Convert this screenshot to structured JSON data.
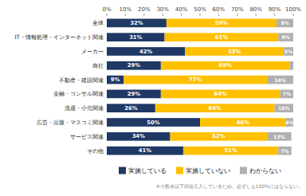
{
  "chart_data": {
    "type": "bar",
    "orientation": "horizontal",
    "stacked": true,
    "categories": [
      "全体",
      "IT・情報処理・インターネット関連",
      "メーカー",
      "商社",
      "不動産・建設関連",
      "金融・コンサル関連",
      "流通・小売関連",
      "広告・出版・マスコミ関連",
      "サービス関連",
      "その他"
    ],
    "series": [
      {
        "name": "実施している",
        "color": "#1f3864",
        "values": [
          32,
          31,
          42,
          29,
          9,
          29,
          26,
          50,
          34,
          41
        ],
        "value_labels": [
          "32%",
          "31%",
          "42%",
          "29%",
          "9%",
          "29%",
          "26%",
          "50%",
          "34%",
          "41%"
        ]
      },
      {
        "name": "実施していない",
        "color": "#ffc000",
        "values": [
          59,
          61,
          53,
          69,
          77,
          64,
          64,
          46,
          52,
          51
        ],
        "value_labels": [
          "59%",
          "61%",
          "53%",
          "69%",
          "77%",
          "64%",
          "64%",
          "46%",
          "52%",
          "51%"
        ]
      },
      {
        "name": "わからない",
        "color": "#b0b0b0",
        "values": [
          9,
          8,
          5,
          2,
          14,
          7,
          10,
          4,
          13,
          7
        ],
        "value_labels": [
          "9%",
          "8%",
          "5%",
          null,
          "14%",
          "7%",
          "10%",
          "4%",
          "13%",
          "7%"
        ]
      }
    ],
    "xlim": [
      0,
      100
    ],
    "xticks": [
      {
        "value": 0,
        "label": "0%"
      },
      {
        "value": 10,
        "label": "10%"
      },
      {
        "value": 20,
        "label": "20%"
      },
      {
        "value": 30,
        "label": "30%"
      },
      {
        "value": 40,
        "label": "40%"
      },
      {
        "value": 50,
        "label": "50%"
      },
      {
        "value": 60,
        "label": "60%"
      },
      {
        "value": 70,
        "label": "70%"
      },
      {
        "value": 80,
        "label": "80%"
      },
      {
        "value": 90,
        "label": "90%"
      },
      {
        "value": 100,
        "label": "100%"
      }
    ],
    "grid": false,
    "legend": "bottom",
    "data_labels": true,
    "annotations": [
      "※小数点以下四捨五入しているため、必ずしも100%にはならない。"
    ]
  }
}
